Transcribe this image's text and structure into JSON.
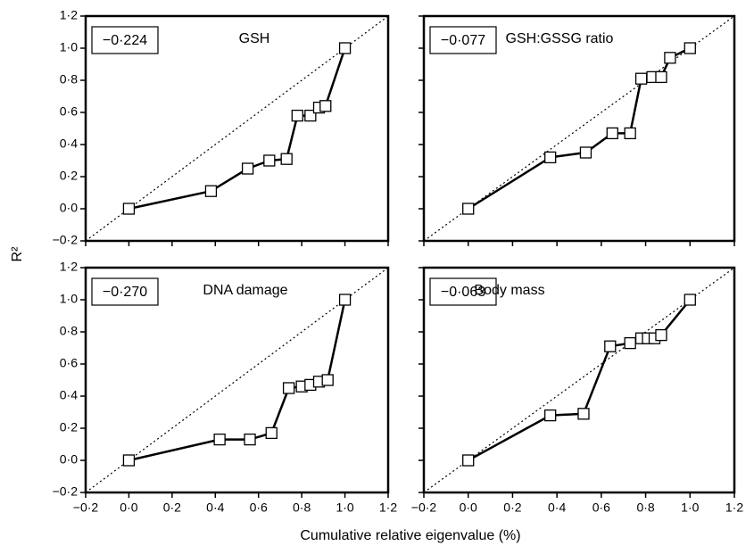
{
  "x_label": "Cumulative relative eigenvalue (%)",
  "y_label": "R²",
  "chart_data": [
    {
      "type": "line",
      "title": "GSH",
      "annotation": "−0·224",
      "color": "#000000",
      "diagonal": true,
      "x": [
        0,
        0.38,
        0.55,
        0.65,
        0.73,
        0.78,
        0.84,
        0.88,
        0.91,
        1.0
      ],
      "values": [
        0,
        0.11,
        0.25,
        0.3,
        0.31,
        0.58,
        0.58,
        0.63,
        0.64,
        1.0
      ],
      "xlim": [
        -0.2,
        1.2
      ],
      "ylim": [
        -0.2,
        1.2
      ],
      "xticks": [
        -0.2,
        0,
        0.2,
        0.4,
        0.6,
        0.8,
        1.0,
        1.2
      ],
      "yticks": [
        {
          "value": -0.2,
          "label": "−0·2"
        },
        {
          "value": 0,
          "label": "0·0"
        },
        {
          "value": 0.2,
          "label": "0·2"
        },
        {
          "value": 0.4,
          "label": "0·4"
        },
        {
          "value": 0.6,
          "label": "0·6"
        },
        {
          "value": 0.8,
          "label": "0·8"
        },
        {
          "value": 1.0,
          "label": "1·0"
        },
        {
          "value": 1.2,
          "label": "1·2"
        }
      ]
    },
    {
      "type": "line",
      "title": "GSH:GSSG ratio",
      "annotation": "−0·077",
      "color": "#000000",
      "diagonal": true,
      "x": [
        0,
        0.37,
        0.53,
        0.65,
        0.73,
        0.78,
        0.83,
        0.87,
        0.91,
        1.0
      ],
      "values": [
        0,
        0.32,
        0.35,
        0.47,
        0.47,
        0.81,
        0.82,
        0.82,
        0.94,
        1.0
      ],
      "xlim": [
        -0.2,
        1.2
      ],
      "ylim": [
        -0.2,
        1.2
      ],
      "xticks": [
        -0.2,
        0,
        0.2,
        0.4,
        0.6,
        0.8,
        1.0,
        1.2
      ],
      "yticks": [
        -0.2,
        0,
        0.2,
        0.4,
        0.6,
        0.8,
        1.0,
        1.2
      ]
    },
    {
      "type": "line",
      "title": "DNA damage",
      "annotation": "−0·270",
      "color": "#000000",
      "diagonal": true,
      "x": [
        0,
        0.42,
        0.56,
        0.66,
        0.74,
        0.8,
        0.84,
        0.88,
        0.92,
        1.0
      ],
      "values": [
        0,
        0.13,
        0.13,
        0.17,
        0.45,
        0.46,
        0.47,
        0.49,
        0.5,
        1.0
      ],
      "xlim": [
        -0.2,
        1.2
      ],
      "ylim": [
        -0.2,
        1.2
      ],
      "xticks": [
        {
          "value": -0.2,
          "label": "−0·2"
        },
        {
          "value": 0,
          "label": "0·0"
        },
        {
          "value": 0.2,
          "label": "0·2"
        },
        {
          "value": 0.4,
          "label": "0·4"
        },
        {
          "value": 0.6,
          "label": "0·6"
        },
        {
          "value": 0.8,
          "label": "0·8"
        },
        {
          "value": 1.0,
          "label": "1·0"
        },
        {
          "value": 1.2,
          "label": "1·2"
        }
      ],
      "yticks": [
        {
          "value": -0.2,
          "label": "−0·2"
        },
        {
          "value": 0,
          "label": "0·0"
        },
        {
          "value": 0.2,
          "label": "0·2"
        },
        {
          "value": 0.4,
          "label": "0·4"
        },
        {
          "value": 0.6,
          "label": "0·6"
        },
        {
          "value": 0.8,
          "label": "0·8"
        },
        {
          "value": 1.0,
          "label": "1·0"
        },
        {
          "value": 1.2,
          "label": "1·2"
        }
      ]
    },
    {
      "type": "line",
      "title": "Body mass",
      "annotation": "−0·063",
      "color": "#000000",
      "diagonal": true,
      "x": [
        0,
        0.37,
        0.52,
        0.64,
        0.73,
        0.78,
        0.81,
        0.84,
        0.87,
        1.0
      ],
      "values": [
        0,
        0.28,
        0.29,
        0.71,
        0.73,
        0.76,
        0.76,
        0.76,
        0.78,
        1.0
      ],
      "xlim": [
        -0.2,
        1.2
      ],
      "ylim": [
        -0.2,
        1.2
      ],
      "xticks": [
        {
          "value": -0.2,
          "label": "−0·2"
        },
        {
          "value": 0,
          "label": "0·0"
        },
        {
          "value": 0.2,
          "label": "0·2"
        },
        {
          "value": 0.4,
          "label": "0·4"
        },
        {
          "value": 0.6,
          "label": "0·6"
        },
        {
          "value": 0.8,
          "label": "0·8"
        },
        {
          "value": 1.0,
          "label": "1·0"
        },
        {
          "value": 1.2,
          "label": "1·2"
        }
      ],
      "yticks": [
        -0.2,
        0,
        0.2,
        0.4,
        0.6,
        0.8,
        1.0,
        1.2
      ]
    }
  ]
}
